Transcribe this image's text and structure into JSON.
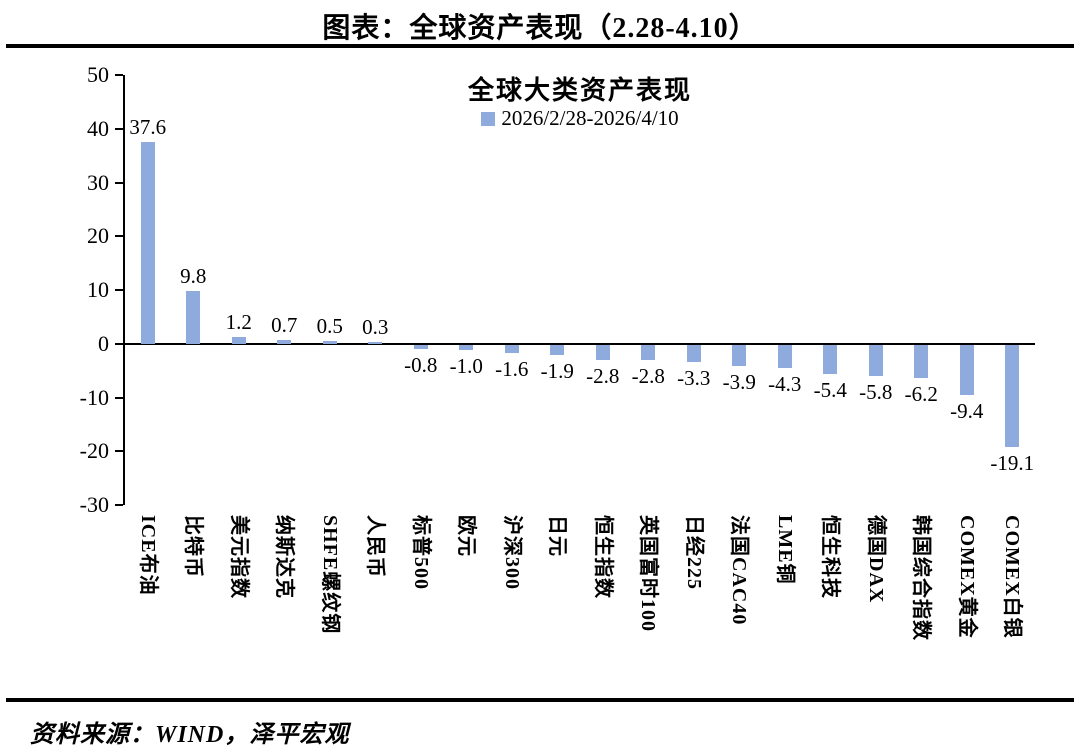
{
  "page": {
    "title": "图表：全球资产表现（2.28-4.10）",
    "source": "资料来源：WIND，泽平宏观"
  },
  "chart_data": {
    "type": "bar",
    "title": "全球大类资产表现",
    "legend": "2026/2/28-2026/4/10",
    "legend_position": "top-center",
    "bar_color": "#8FAADC",
    "grid": false,
    "xlabel": "",
    "ylabel": "",
    "ylim": [
      -30,
      50
    ],
    "yticks": [
      50,
      40,
      30,
      20,
      10,
      0,
      -10,
      -20,
      -30
    ],
    "categories": [
      "ICE布油",
      "比特币",
      "美元指数",
      "纳斯达克",
      "SHFE螺纹钢",
      "人民币",
      "标普500",
      "欧元",
      "沪深300",
      "日元",
      "恒生指数",
      "英国富时100",
      "日经225",
      "法国CAC40",
      "LME铜",
      "恒生科技",
      "德国DAX",
      "韩国综合指数",
      "COMEX黄金",
      "COMEX白银"
    ],
    "values": [
      37.6,
      9.8,
      1.2,
      0.7,
      0.5,
      0.3,
      -0.8,
      -1.0,
      -1.6,
      -1.9,
      -2.8,
      -2.8,
      -3.3,
      -3.9,
      -4.3,
      -5.4,
      -5.8,
      -6.2,
      -9.4,
      -19.1
    ]
  }
}
